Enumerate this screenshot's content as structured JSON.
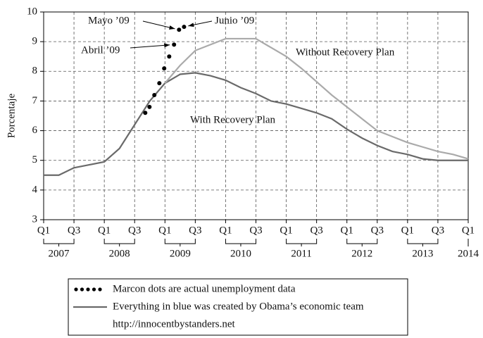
{
  "chart_data": {
    "type": "line",
    "y_label": "Porcentaje",
    "xlim": [
      0,
      28
    ],
    "ylim": [
      3,
      10
    ],
    "xticks": [
      {
        "value": 0,
        "label": "Q1"
      },
      {
        "value": 2,
        "label": "Q3"
      },
      {
        "value": 4,
        "label": "Q1"
      },
      {
        "value": 6,
        "label": "Q3"
      },
      {
        "value": 8,
        "label": "Q1"
      },
      {
        "value": 10,
        "label": "Q3"
      },
      {
        "value": 12,
        "label": "Q1"
      },
      {
        "value": 14,
        "label": "Q3"
      },
      {
        "value": 16,
        "label": "Q1"
      },
      {
        "value": 18,
        "label": "Q3"
      },
      {
        "value": 20,
        "label": "Q1"
      },
      {
        "value": 22,
        "label": "Q3"
      },
      {
        "value": 24,
        "label": "Q1"
      },
      {
        "value": 26,
        "label": "Q3"
      },
      {
        "value": 28,
        "label": "Q1"
      }
    ],
    "year_labels": [
      {
        "value": 1,
        "label": "2007"
      },
      {
        "value": 5,
        "label": "2008"
      },
      {
        "value": 9,
        "label": "2009"
      },
      {
        "value": 13,
        "label": "2010"
      },
      {
        "value": 17,
        "label": "2011"
      },
      {
        "value": 21,
        "label": "2012"
      },
      {
        "value": 25,
        "label": "2013"
      },
      {
        "value": 28,
        "label": "2014"
      }
    ],
    "yticks": [
      3,
      4,
      5,
      6,
      7,
      8,
      9,
      10
    ],
    "grid": true,
    "series": [
      {
        "name": "With Recovery Plan",
        "type": "line",
        "color": "#6a6a6a",
        "x": [
          0,
          1,
          2,
          3,
          4,
          5,
          6,
          7,
          8,
          9,
          10,
          11,
          12,
          13,
          14,
          15,
          16,
          17,
          18,
          19,
          20,
          21,
          22,
          23,
          24,
          25,
          26,
          27,
          28
        ],
        "values": [
          4.5,
          4.5,
          4.75,
          4.85,
          4.95,
          5.4,
          6.2,
          7.0,
          7.6,
          7.9,
          7.95,
          7.85,
          7.7,
          7.45,
          7.25,
          7.0,
          6.9,
          6.75,
          6.6,
          6.4,
          6.05,
          5.75,
          5.5,
          5.3,
          5.2,
          5.05,
          5.0,
          5.0,
          5.0
        ]
      },
      {
        "name": "Without Recovery Plan",
        "type": "line",
        "color": "#aaaaaa",
        "x": [
          8,
          9,
          10,
          11,
          12,
          13,
          14,
          15,
          16,
          17,
          18,
          19,
          20,
          21,
          22,
          23,
          24,
          25,
          26,
          27,
          28
        ],
        "values": [
          7.6,
          8.2,
          8.7,
          8.9,
          9.1,
          9.1,
          9.1,
          8.8,
          8.5,
          8.1,
          7.65,
          7.2,
          6.8,
          6.4,
          6.0,
          5.8,
          5.6,
          5.45,
          5.3,
          5.2,
          5.05
        ]
      },
      {
        "name": "Marcon dots are actual unemployment data",
        "type": "scatter",
        "color": "#000000",
        "x": [
          6.7,
          6.98,
          7.3,
          7.63,
          7.95,
          8.28,
          8.6,
          8.93,
          9.26
        ],
        "values": [
          6.6,
          6.8,
          7.2,
          7.6,
          8.1,
          8.5,
          8.9,
          9.4,
          9.5
        ]
      }
    ],
    "annotations": [
      "Mayo ’09",
      "Junio ’09",
      "Abril ’09"
    ],
    "legend_note": "Everything in blue was created by Obama’s economic team",
    "source": "http://innocentbystanders.net"
  }
}
